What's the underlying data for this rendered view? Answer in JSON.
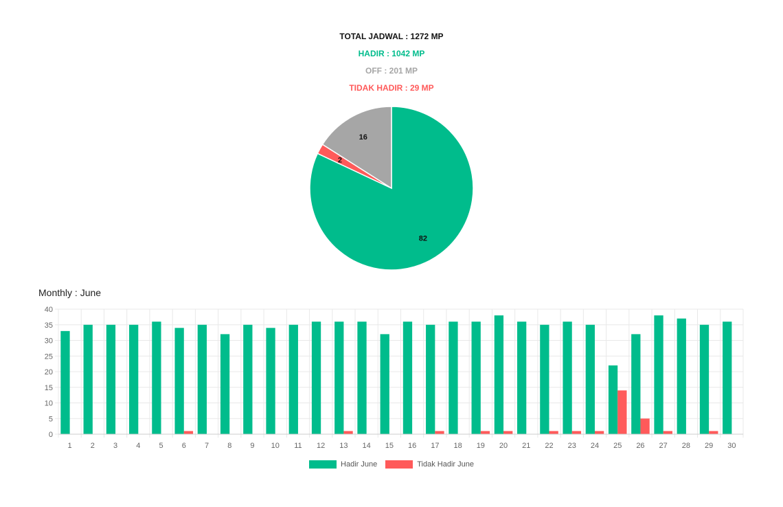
{
  "summary": {
    "total": "TOTAL JADWAL : 1272 MP",
    "hadir": "HADIR : 1042 MP",
    "off": "OFF : 201 MP",
    "tidak_hadir": "TIDAK HADIR : 29 MP"
  },
  "colors": {
    "hadir": "#00bc8c",
    "off": "#a6a6a6",
    "tidak_hadir": "#ff5a5a",
    "grid": "#e8e8e8",
    "axis_text": "#666666"
  },
  "monthly_title": "Monthly : June",
  "legend": [
    {
      "label": "Hadir June",
      "color": "#00bc8c"
    },
    {
      "label": "Tidak Hadir June",
      "color": "#ff5a5a"
    }
  ],
  "chart_data": [
    {
      "type": "pie",
      "slices": [
        {
          "label": "HADIR",
          "value": 82,
          "display": "82",
          "color": "#00bc8c"
        },
        {
          "label": "TIDAK HADIR",
          "value": 2,
          "display": "2",
          "color": "#ff5a5a"
        },
        {
          "label": "OFF",
          "value": 16,
          "display": "16",
          "color": "#a6a6a6"
        }
      ]
    },
    {
      "type": "bar",
      "categories": [
        "1",
        "2",
        "3",
        "4",
        "5",
        "6",
        "7",
        "8",
        "9",
        "10",
        "11",
        "12",
        "13",
        "14",
        "15",
        "16",
        "17",
        "18",
        "19",
        "20",
        "21",
        "22",
        "23",
        "24",
        "25",
        "26",
        "27",
        "28",
        "29",
        "30"
      ],
      "series": [
        {
          "name": "Hadir June",
          "color": "#00bc8c",
          "values": [
            33,
            35,
            35,
            35,
            36,
            34,
            35,
            32,
            35,
            34,
            35,
            36,
            36,
            36,
            32,
            36,
            35,
            36,
            36,
            38,
            36,
            35,
            36,
            35,
            22,
            32,
            38,
            37,
            35,
            36
          ]
        },
        {
          "name": "Tidak Hadir June",
          "color": "#ff5a5a",
          "values": [
            0,
            0,
            0,
            0,
            0,
            1,
            0,
            0,
            0,
            0,
            0,
            0,
            1,
            0,
            0,
            0,
            1,
            0,
            1,
            1,
            0,
            1,
            1,
            1,
            14,
            5,
            1,
            0,
            1,
            0
          ]
        }
      ],
      "ylim": [
        0,
        40
      ],
      "yticks": [
        0,
        5,
        10,
        15,
        20,
        25,
        30,
        35,
        40
      ],
      "grid": true,
      "legend_position": "bottom"
    }
  ]
}
